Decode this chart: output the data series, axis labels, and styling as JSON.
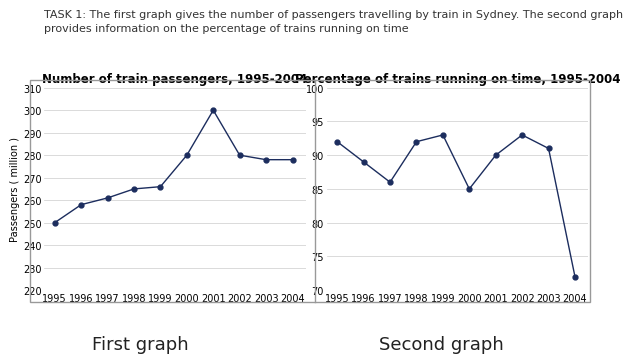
{
  "title_text": "TASK 1: The first graph gives the number of passengers travelling by train in Sydney. The second graph\nprovides information on the percentage of trains running on time",
  "graph1_title": "Number of train passengers, 1995-2004",
  "graph2_title": "Percentage of trains running on time, 1995-2004",
  "years": [
    1995,
    1996,
    1997,
    1998,
    1999,
    2000,
    2001,
    2002,
    2003,
    2004
  ],
  "passengers": [
    250,
    258,
    261,
    265,
    266,
    280,
    300,
    280,
    278,
    278
  ],
  "on_time": [
    92,
    89,
    86,
    92,
    93,
    85,
    90,
    93,
    91,
    72
  ],
  "graph1_ylabel": "Passengers ( million )",
  "graph1_ylim": [
    220,
    310
  ],
  "graph1_yticks": [
    220,
    230,
    240,
    250,
    260,
    270,
    280,
    290,
    300,
    310
  ],
  "graph2_ylim": [
    70,
    100
  ],
  "graph2_yticks": [
    70,
    75,
    80,
    85,
    90,
    95,
    100
  ],
  "line_color": "#1c2d5e",
  "marker_color": "#1c2d5e",
  "label1": "First graph",
  "label2": "Second graph",
  "bg_color": "#ffffff",
  "panel_bg": "#ffffff",
  "title_fontsize": 8.0,
  "graph_title_fontsize": 8.5,
  "tick_fontsize": 7.0,
  "ylabel_fontsize": 7.0,
  "label_fontsize": 13
}
